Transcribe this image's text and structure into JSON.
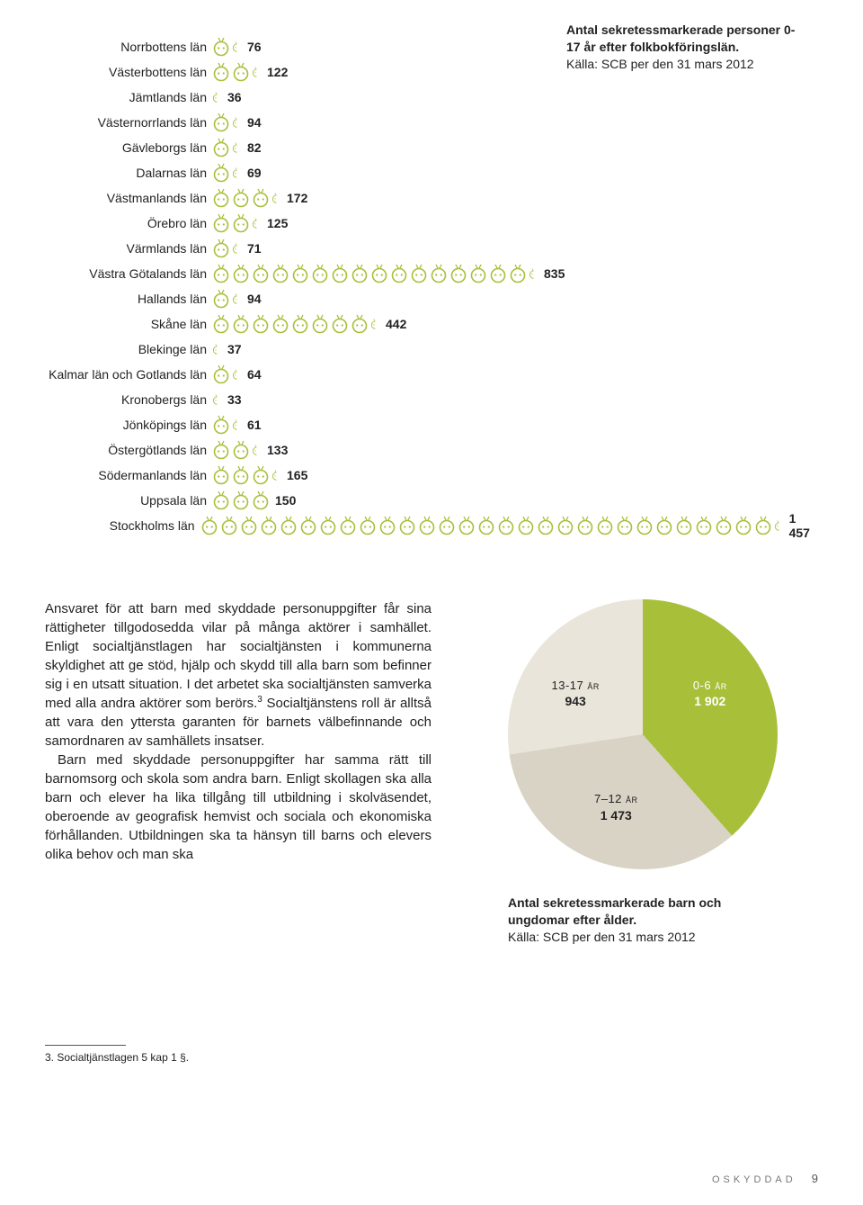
{
  "chart": {
    "units_per_icon": 50,
    "icon_color": "#a8bf3a",
    "icon_stroke": "#a8bf3a",
    "caption_title": "Antal sekretessmarkerade personer 0-17 år efter folkbokföringslän.",
    "caption_source": "Källa: SCB per den 31 mars 2012",
    "rows": [
      {
        "label": "Norrbottens län",
        "value": 76
      },
      {
        "label": "Västerbottens län",
        "value": 122
      },
      {
        "label": "Jämtlands län",
        "value": 36
      },
      {
        "label": "Västernorrlands län",
        "value": 94
      },
      {
        "label": "Gävleborgs län",
        "value": 82
      },
      {
        "label": "Dalarnas län",
        "value": 69
      },
      {
        "label": "Västmanlands län",
        "value": 172
      },
      {
        "label": "Örebro län",
        "value": 125
      },
      {
        "label": "Värmlands län",
        "value": 71
      },
      {
        "label": "Västra Götalands län",
        "value": 835
      },
      {
        "label": "Hallands län",
        "value": 94
      },
      {
        "label": "Skåne län",
        "value": 442
      },
      {
        "label": "Blekinge län",
        "value": 37
      },
      {
        "label": "Kalmar län och Gotlands län",
        "value": 64
      },
      {
        "label": "Kronobergs län",
        "value": 33
      },
      {
        "label": "Jönköpings län",
        "value": 61
      },
      {
        "label": "Östergötlands län",
        "value": 133
      },
      {
        "label": "Södermanlands län",
        "value": 165
      },
      {
        "label": "Uppsala län",
        "value": 150
      },
      {
        "label": "Stockholms län",
        "value": 1457,
        "display": "1 457"
      }
    ]
  },
  "prose": {
    "p1": "Ansvaret för att barn med skyddade personuppgifter får sina rättigheter tillgodosedda vilar på många aktörer i samhället. Enligt socialtjänstlagen har socialtjänsten i kommunerna skyldighet att ge stöd, hjälp och skydd till alla barn som befinner sig i en utsatt situation. I det arbetet ska socialtjänsten samverka med alla andra aktörer som berörs.",
    "p1b": "Socialtjänstens roll är alltså att vara den yttersta garanten för barnets välbefinnande och samordnaren av samhällets insatser.",
    "p2": "Barn med skyddade personuppgifter har samma rätt till barnomsorg och skola som andra barn. Enligt skollagen ska alla barn och elever ha lika tillgång till utbildning i skolväsendet, oberoende av geografisk hemvist och sociala och ekonomiska förhållanden. Utbildningen ska ta hänsyn till barns och elevers olika behov och man ska",
    "sup": "3"
  },
  "pie": {
    "size": 300,
    "slices": [
      {
        "age": "0-6 år",
        "value": 1902,
        "display": "1 902",
        "color": "#a8bf3a",
        "value_color": "#ffffff"
      },
      {
        "age": "7–12 år",
        "value": 1473,
        "display": "1 473",
        "color": "#d9d3c5",
        "value_color": "#222222"
      },
      {
        "age": "13-17 år",
        "value": 943,
        "display": "943",
        "color": "#e9e5da",
        "value_color": "#222222"
      }
    ],
    "caption_title": "Antal sekretessmarkerade barn och ungdomar efter ålder.",
    "caption_source": "Källa: SCB per den 31 mars 2012"
  },
  "footnote": {
    "marker": "3.",
    "text": "Socialtjänstlagen 5 kap 1 §."
  },
  "footer": {
    "word": "OSKYDDAD",
    "page": "9"
  }
}
